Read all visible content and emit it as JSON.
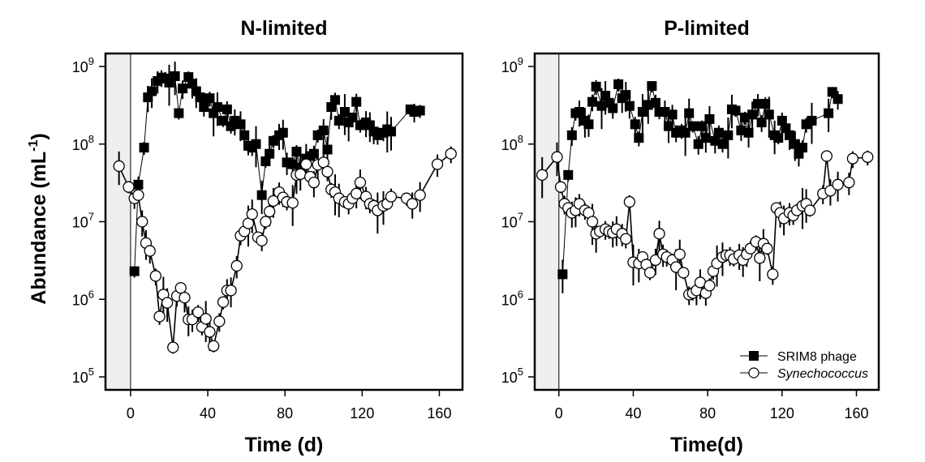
{
  "y_axis_label": {
    "main": "Abundance (mL",
    "sup": "-1",
    "close": ")"
  },
  "legend": {
    "phage": "SRIM8 phage",
    "host": "Synechococcus"
  },
  "chart_data": [
    {
      "type": "scatter",
      "title": "N-limited",
      "xlabel": "Time (d)",
      "ylabel": "Abundance (mL-1)",
      "xlim": [
        -13,
        172
      ],
      "xticks": [
        0,
        40,
        80,
        120,
        160
      ],
      "xtick_labels": [
        "0",
        "40",
        "80",
        "120",
        "160"
      ],
      "ylim": [
        100000,
        1000000000
      ],
      "yscale": "log",
      "yticks": [
        100000,
        1000000,
        10000000,
        100000000,
        1000000000
      ],
      "ytick_labels": [
        {
          "base": "10",
          "exp": "5"
        },
        {
          "base": "10",
          "exp": "6"
        },
        {
          "base": "10",
          "exp": "7"
        },
        {
          "base": "10",
          "exp": "8"
        },
        {
          "base": "10",
          "exp": "9"
        }
      ],
      "shaded_region_x": [
        -13,
        0
      ],
      "series": [
        {
          "name": "SRIM8 phage",
          "marker": "filled-square",
          "x": [
            2,
            4,
            7,
            9,
            11,
            14,
            16,
            18,
            20,
            23,
            25,
            27,
            30,
            32,
            34,
            36,
            38,
            41,
            43,
            45,
            48,
            50,
            52,
            54,
            57,
            59,
            61,
            63,
            65,
            68,
            70,
            72,
            74,
            77,
            79,
            81,
            84,
            86,
            88,
            91,
            93,
            95,
            97,
            100,
            102,
            104,
            106,
            108,
            111,
            113,
            115,
            117,
            119,
            122,
            124,
            126,
            128,
            131,
            133,
            135,
            145,
            147,
            150
          ],
          "y": [
            2300000,
            30000000,
            90000000,
            400000000,
            480000000,
            650000000,
            720000000,
            700000000,
            620000000,
            750000000,
            250000000,
            520000000,
            730000000,
            600000000,
            480000000,
            400000000,
            300000000,
            390000000,
            250000000,
            300000000,
            200000000,
            280000000,
            170000000,
            200000000,
            180000000,
            130000000,
            95000000,
            90000000,
            100000000,
            22000000,
            60000000,
            75000000,
            110000000,
            130000000,
            140000000,
            58000000,
            55000000,
            80000000,
            50000000,
            65000000,
            70000000,
            75000000,
            130000000,
            150000000,
            85000000,
            300000000,
            370000000,
            200000000,
            260000000,
            190000000,
            220000000,
            350000000,
            175000000,
            190000000,
            175000000,
            145000000,
            130000000,
            140000000,
            155000000,
            145000000,
            280000000,
            260000000,
            270000000
          ]
        },
        {
          "name": "Synechococcus",
          "marker": "open-circle",
          "x": [
            -6,
            -1,
            2,
            4,
            6,
            8,
            10,
            13,
            15,
            17,
            19,
            22,
            24,
            26,
            28,
            30,
            32,
            35,
            37,
            39,
            41,
            43,
            46,
            48,
            50,
            52,
            55,
            57,
            59,
            61,
            63,
            66,
            68,
            70,
            72,
            74,
            77,
            79,
            81,
            84,
            86,
            88,
            91,
            93,
            95,
            97,
            100,
            102,
            104,
            106,
            108,
            111,
            113,
            115,
            117,
            119,
            122,
            124,
            126,
            128,
            131,
            133,
            135,
            143,
            146,
            150,
            159,
            166
          ],
          "y": [
            52000000,
            28000000,
            20000000,
            22000000,
            10000000,
            5300000,
            4200000,
            2000000,
            600000,
            1150000,
            900000,
            240000,
            1100000,
            1400000,
            1050000,
            550000,
            550000,
            680000,
            440000,
            560000,
            380000,
            250000,
            520000,
            920000,
            1300000,
            1300000,
            2700000,
            6600000,
            7500000,
            9500000,
            12500000,
            6300000,
            5700000,
            10000000,
            13500000,
            18500000,
            24000000,
            20500000,
            18000000,
            17500000,
            40000000,
            41000000,
            55000000,
            38000000,
            32000000,
            54000000,
            58000000,
            44000000,
            26000000,
            24000000,
            20000000,
            18000000,
            17000000,
            20000000,
            23000000,
            32000000,
            21000000,
            17000000,
            16000000,
            14000000,
            16000000,
            17000000,
            21000000,
            20000000,
            17000000,
            22000000,
            55000000,
            75000000
          ]
        }
      ]
    },
    {
      "type": "scatter",
      "title": "P-limited",
      "xlabel": "Time(d)",
      "ylabel": "",
      "xlim": [
        -13,
        172
      ],
      "xticks": [
        0,
        40,
        80,
        120,
        160
      ],
      "xtick_labels": [
        "0",
        "40",
        "80",
        "120",
        "160"
      ],
      "ylim": [
        100000,
        1000000000
      ],
      "yscale": "log",
      "yticks": [
        100000,
        1000000,
        10000000,
        100000000,
        1000000000
      ],
      "ytick_labels": [
        {
          "base": "10",
          "exp": "5"
        },
        {
          "base": "10",
          "exp": "6"
        },
        {
          "base": "10",
          "exp": "7"
        },
        {
          "base": "10",
          "exp": "8"
        },
        {
          "base": "10",
          "exp": "9"
        }
      ],
      "shaded_region_x": [
        -13,
        0
      ],
      "series": [
        {
          "name": "SRIM8 phage",
          "marker": "filled-square",
          "x": [
            2,
            5,
            7,
            9,
            11,
            14,
            16,
            18,
            20,
            23,
            25,
            27,
            29,
            32,
            34,
            36,
            38,
            41,
            43,
            45,
            48,
            50,
            52,
            54,
            57,
            59,
            61,
            63,
            66,
            68,
            70,
            72,
            75,
            77,
            79,
            81,
            84,
            86,
            88,
            91,
            93,
            95,
            98,
            100,
            102,
            104,
            107,
            109,
            111,
            113,
            116,
            118,
            120,
            122,
            124,
            127,
            129,
            131,
            133,
            136,
            145,
            147,
            150
          ],
          "y": [
            2100000,
            40000000,
            130000000,
            250000000,
            260000000,
            200000000,
            180000000,
            350000000,
            550000000,
            310000000,
            420000000,
            340000000,
            290000000,
            590000000,
            390000000,
            430000000,
            310000000,
            180000000,
            120000000,
            260000000,
            320000000,
            560000000,
            340000000,
            260000000,
            260000000,
            170000000,
            240000000,
            140000000,
            150000000,
            140000000,
            250000000,
            170000000,
            100000000,
            170000000,
            120000000,
            210000000,
            110000000,
            140000000,
            100000000,
            130000000,
            280000000,
            270000000,
            150000000,
            220000000,
            140000000,
            240000000,
            330000000,
            190000000,
            330000000,
            240000000,
            130000000,
            120000000,
            200000000,
            160000000,
            130000000,
            100000000,
            75000000,
            90000000,
            180000000,
            200000000,
            250000000,
            470000000,
            380000000
          ]
        },
        {
          "name": "Synechococcus",
          "marker": "open-circle",
          "x": [
            -9,
            -1,
            1,
            3,
            5,
            7,
            9,
            11,
            14,
            16,
            18,
            20,
            22,
            25,
            27,
            29,
            31,
            34,
            36,
            38,
            40,
            43,
            45,
            47,
            49,
            52,
            54,
            56,
            58,
            61,
            63,
            65,
            67,
            70,
            72,
            74,
            76,
            79,
            81,
            83,
            85,
            88,
            90,
            92,
            94,
            97,
            99,
            101,
            103,
            106,
            108,
            110,
            112,
            115,
            117,
            119,
            121,
            124,
            126,
            128,
            131,
            133,
            135,
            142,
            144,
            146,
            150,
            156,
            158,
            166
          ],
          "y": [
            40000000,
            68000000,
            28000000,
            17000000,
            15000000,
            13000000,
            14000000,
            17000000,
            14000000,
            13000000,
            10000000,
            7000000,
            7500000,
            8000000,
            7500000,
            7200000,
            8000000,
            7000000,
            6000000,
            18000000,
            3000000,
            2900000,
            3500000,
            2800000,
            2200000,
            3200000,
            7000000,
            3800000,
            3500000,
            3200000,
            2600000,
            3800000,
            2200000,
            1150000,
            1200000,
            1300000,
            1650000,
            1200000,
            1500000,
            2300000,
            2900000,
            3500000,
            3700000,
            3700000,
            3300000,
            3700000,
            3200000,
            3800000,
            4500000,
            5500000,
            3400000,
            5200000,
            4500000,
            2100000,
            15000000,
            13000000,
            11000000,
            13000000,
            12000000,
            14000000,
            16000000,
            17000000,
            14000000,
            23000000,
            70000000,
            25000000,
            30000000,
            32000000,
            65000000,
            68000000
          ]
        }
      ]
    }
  ]
}
